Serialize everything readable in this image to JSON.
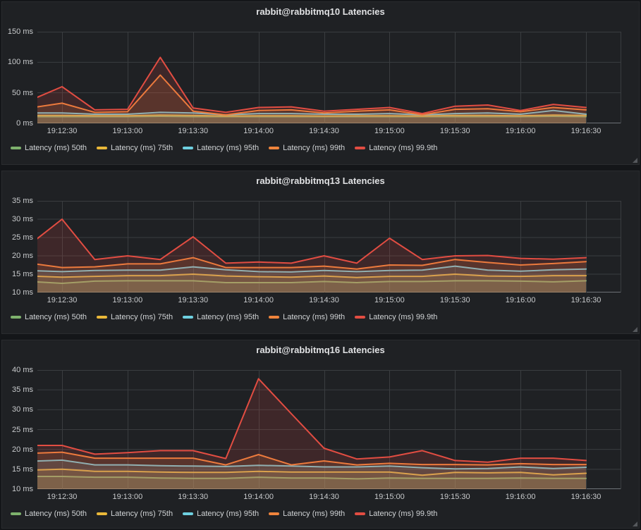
{
  "colors": {
    "page_bg": "#141619",
    "panel_bg": "#1f2124",
    "grid": "#3a3d40",
    "axis_line": "#6e7277",
    "tick_text": "#c8cacc",
    "legend_text": "#d0d3d5",
    "title_text": "#e0e1e3",
    "series_green": "#7EB26D",
    "series_yellow": "#EAB839",
    "series_cyan": "#6ED0E0",
    "series_orange": "#EF843C",
    "series_red": "#E24D42",
    "fill_opacity": 0.16
  },
  "chart_data": [
    {
      "type": "area",
      "title": "rabbit@rabbitmq10 Latencies",
      "ylabel": "ms",
      "ylim": [
        0,
        150
      ],
      "grid": true,
      "legend_position": "bottom",
      "y_ticks": [
        {
          "label": "150 ms",
          "value": 150
        },
        {
          "label": "100 ms",
          "value": 100
        },
        {
          "label": "50 ms",
          "value": 50
        },
        {
          "label": "0 ms",
          "value": 0
        }
      ],
      "x_tick_labels": [
        "19:12:30",
        "19:13:00",
        "19:13:30",
        "19:14:00",
        "19:14:30",
        "19:15:00",
        "19:15:30",
        "19:16:00",
        "19:16:30"
      ],
      "x_offsets_sec": [
        -15,
        0,
        15,
        30,
        45,
        60,
        75,
        90,
        105,
        120,
        135,
        150,
        165,
        180,
        195,
        210,
        225,
        240
      ],
      "series": [
        {
          "name": "Latency (ms) 50th",
          "color": "#7EB26D",
          "values": [
            11,
            11,
            11,
            11,
            11.5,
            11,
            11,
            11,
            11,
            11,
            11,
            11,
            11,
            11,
            11,
            11,
            11.5,
            11
          ]
        },
        {
          "name": "Latency (ms) 75th",
          "color": "#EAB839",
          "values": [
            13,
            13,
            12.5,
            12.5,
            13.5,
            13,
            12,
            12.5,
            12.5,
            12,
            12.5,
            12.5,
            12,
            13,
            13,
            12.5,
            13.5,
            13
          ]
        },
        {
          "name": "Latency (ms) 95th",
          "color": "#6ED0E0",
          "values": [
            17,
            17,
            15,
            15,
            18,
            17,
            14,
            16,
            16,
            15,
            15,
            16,
            14,
            16,
            17,
            15,
            21,
            15
          ]
        },
        {
          "name": "Latency (ms) 99th",
          "color": "#EF843C",
          "values": [
            25,
            33,
            18,
            19,
            79,
            20,
            14,
            21,
            22,
            17,
            20,
            22,
            14,
            23,
            24,
            19,
            26,
            22
          ]
        },
        {
          "name": "Latency (ms) 99.9th",
          "color": "#E24D42",
          "values": [
            37,
            60,
            22,
            23,
            108,
            25,
            18,
            26,
            27,
            20,
            23,
            26,
            16,
            28,
            30,
            21,
            31,
            26
          ]
        }
      ]
    },
    {
      "type": "area",
      "title": "rabbit@rabbitmq13 Latencies",
      "ylabel": "ms",
      "ylim": [
        10,
        35
      ],
      "grid": true,
      "legend_position": "bottom",
      "y_ticks": [
        {
          "label": "35 ms",
          "value": 35
        },
        {
          "label": "30 ms",
          "value": 30
        },
        {
          "label": "25 ms",
          "value": 25
        },
        {
          "label": "20 ms",
          "value": 20
        },
        {
          "label": "15 ms",
          "value": 15
        },
        {
          "label": "10 ms",
          "value": 10
        }
      ],
      "x_tick_labels": [
        "19:12:30",
        "19:13:00",
        "19:13:30",
        "19:14:00",
        "19:14:30",
        "19:15:00",
        "19:15:30",
        "19:16:00",
        "19:16:30"
      ],
      "x_offsets_sec": [
        -15,
        0,
        15,
        30,
        45,
        60,
        75,
        90,
        105,
        120,
        135,
        150,
        165,
        180,
        195,
        210,
        225,
        240
      ],
      "series": [
        {
          "name": "Latency (ms) 50th",
          "color": "#7EB26D",
          "values": [
            13,
            12.5,
            13.1,
            13.2,
            13.2,
            13.2,
            12.7,
            12.7,
            12.7,
            13,
            12.7,
            13,
            13,
            13.2,
            13.2,
            13.1,
            12.9,
            13.2
          ]
        },
        {
          "name": "Latency (ms) 75th",
          "color": "#EAB839",
          "values": [
            14.5,
            14.2,
            14.4,
            14.6,
            14.6,
            15,
            14.5,
            14.3,
            14.2,
            14.5,
            14.1,
            14.4,
            14.4,
            15,
            14.5,
            14.4,
            14.6,
            14.6
          ]
        },
        {
          "name": "Latency (ms) 95th",
          "color": "#6ED0E0",
          "values": [
            16,
            15.7,
            16,
            16.1,
            16.1,
            17,
            16.2,
            15.7,
            15.6,
            16,
            15.7,
            16,
            16.1,
            17.2,
            16.1,
            15.8,
            16.2,
            16.4
          ]
        },
        {
          "name": "Latency (ms) 99th",
          "color": "#EF843C",
          "values": [
            18,
            16.8,
            17,
            17.8,
            17.8,
            19.5,
            16.8,
            16.8,
            16.8,
            17.2,
            16.4,
            17.5,
            17.4,
            19,
            18.2,
            17.5,
            17.9,
            18.4
          ]
        },
        {
          "name": "Latency (ms) 99.9th",
          "color": "#E24D42",
          "values": [
            23,
            30,
            19,
            20,
            19,
            25.2,
            18,
            18.3,
            18,
            20,
            18,
            24.8,
            19,
            20,
            20.1,
            19.3,
            19.1,
            19.5
          ]
        }
      ]
    },
    {
      "type": "area",
      "title": "rabbit@rabbitmq16 Latencies",
      "ylabel": "ms",
      "ylim": [
        10,
        40
      ],
      "grid": true,
      "legend_position": "bottom",
      "y_ticks": [
        {
          "label": "40 ms",
          "value": 40
        },
        {
          "label": "35 ms",
          "value": 35
        },
        {
          "label": "30 ms",
          "value": 30
        },
        {
          "label": "25 ms",
          "value": 25
        },
        {
          "label": "20 ms",
          "value": 20
        },
        {
          "label": "15 ms",
          "value": 15
        },
        {
          "label": "10 ms",
          "value": 10
        }
      ],
      "x_tick_labels": [
        "19:12:30",
        "19:13:00",
        "19:13:30",
        "19:14:00",
        "19:14:30",
        "19:15:00",
        "19:15:30",
        "19:16:00",
        "19:16:30"
      ],
      "x_offsets_sec": [
        -15,
        0,
        15,
        30,
        45,
        60,
        75,
        90,
        105,
        120,
        135,
        150,
        165,
        180,
        195,
        210,
        225,
        240
      ],
      "series": [
        {
          "name": "Latency (ms) 50th",
          "color": "#7EB26D",
          "values": [
            13.2,
            13.2,
            13,
            13,
            12.8,
            12.7,
            12.7,
            13,
            12.8,
            12.8,
            12.6,
            12.8,
            12.7,
            12.7,
            12.7,
            12.8,
            12.7,
            12.7
          ]
        },
        {
          "name": "Latency (ms) 75th",
          "color": "#EAB839",
          "values": [
            14.8,
            15,
            14.5,
            14.5,
            14.3,
            14.2,
            14.2,
            14.5,
            14.3,
            14.3,
            14.3,
            14.3,
            13.5,
            14.2,
            14.1,
            14.2,
            13.6,
            14
          ]
        },
        {
          "name": "Latency (ms) 95th",
          "color": "#6ED0E0",
          "values": [
            17,
            17.3,
            16.1,
            16.1,
            15.9,
            15.8,
            15.7,
            16,
            15.8,
            15.6,
            15.6,
            15.8,
            15.4,
            15.1,
            15.2,
            15.6,
            15.2,
            15.5
          ]
        },
        {
          "name": "Latency (ms) 99th",
          "color": "#EF843C",
          "values": [
            19,
            19.3,
            17.8,
            17.8,
            17.8,
            17.8,
            16.1,
            18.7,
            16.1,
            17.1,
            16.1,
            16.5,
            16.2,
            16.2,
            16.1,
            16.4,
            16.2,
            16.2
          ]
        },
        {
          "name": "Latency (ms) 99.9th",
          "color": "#E24D42",
          "values": [
            21,
            21,
            18.8,
            19.2,
            19.7,
            19.7,
            17.7,
            37.8,
            29,
            20.3,
            17.6,
            18.1,
            19.7,
            17.2,
            16.8,
            17.8,
            17.8,
            17.2
          ]
        }
      ]
    }
  ]
}
